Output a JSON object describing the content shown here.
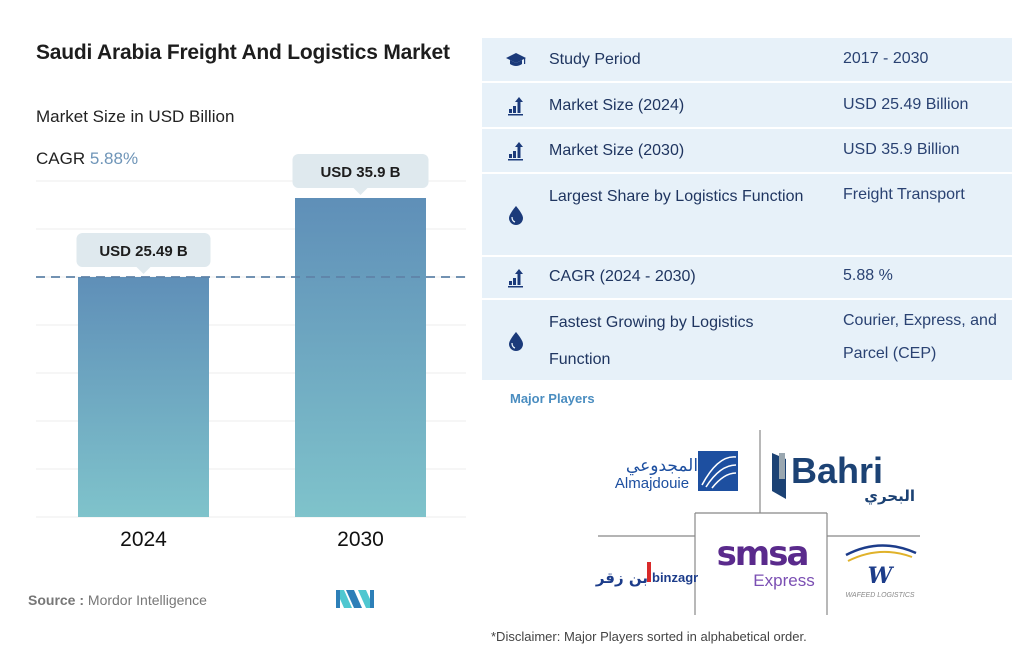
{
  "header": {
    "title": "Saudi Arabia Freight And Logistics Market",
    "subtitle": "Market Size in USD Billion",
    "cagr_label": "CAGR",
    "cagr_value": "5.88%"
  },
  "chart_data": {
    "type": "bar",
    "title": "Saudi Arabia Freight And Logistics Market",
    "ylabel": "Market Size in USD Billion",
    "xlabel": "",
    "categories": [
      "2024",
      "2030"
    ],
    "values": [
      25.49,
      35.9
    ],
    "data_labels": [
      "USD 25.49 B",
      "USD 35.9 B"
    ],
    "ylim": [
      0,
      50
    ],
    "grid": true,
    "reference_line": 25.49,
    "legend": "none",
    "colors": {
      "bar_top": "#5f8fb8",
      "bar_bottom": "#7fc3cb",
      "label_bg": "#dfe9ee",
      "reference": "#5f82a8"
    }
  },
  "footer": {
    "source_label": "Source :",
    "source_value": "Mordor Intelligence"
  },
  "stats": [
    {
      "icon": "graduation-cap-icon",
      "label": "Study Period",
      "value": "2017 - 2030"
    },
    {
      "icon": "growth-chart-icon",
      "label": "Market Size (2024)",
      "value": "USD 25.49 Billion"
    },
    {
      "icon": "growth-chart-icon",
      "label": "Market Size (2030)",
      "value": "USD 35.9 Billion"
    },
    {
      "icon": "drop-icon",
      "label": "Largest Share by Logistics Function",
      "value": "Freight Transport"
    },
    {
      "icon": "growth-chart-icon",
      "label": "CAGR (2024 - 2030)",
      "value": "5.88 %"
    },
    {
      "icon": "drop-icon",
      "label": "Fastest Growing by Logistics Function",
      "value": "Courier, Express, and Parcel (CEP)"
    }
  ],
  "major_players": {
    "heading": "Major Players",
    "players": [
      {
        "name": "Almajdouie",
        "arabic": "المجدوعي"
      },
      {
        "name": "Bahri",
        "arabic": "البحري"
      },
      {
        "name": "binzagr",
        "arabic": "بن زقر"
      },
      {
        "name": "smsa",
        "sub": "Express"
      },
      {
        "name": "WAFEED LOGISTICS"
      }
    ],
    "disclaimer": "*Disclaimer: Major Players sorted in alphabetical order."
  },
  "colors": {
    "panel_bg": "#e7f1f9",
    "panel_text": "#1f3560",
    "accent": "#4a8dc0",
    "icon": "#1b3a7a"
  }
}
